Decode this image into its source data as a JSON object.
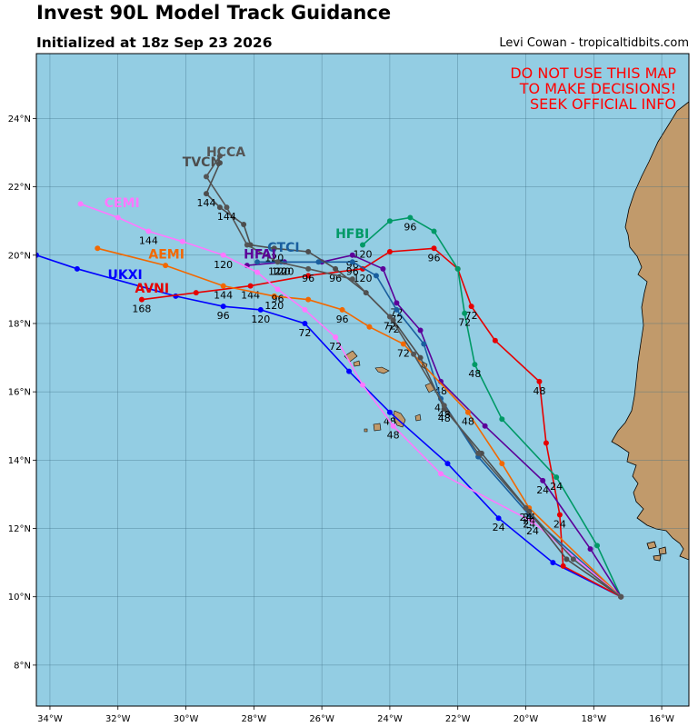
{
  "title": "Invest 90L Model Track Guidance",
  "subtitle": "Initialized at 18z Sep 23 2026",
  "credit": "Levi Cowan - tropicaltidbits.com",
  "warning": [
    "DO NOT USE THIS MAP",
    "TO MAKE DECISIONS!",
    "SEEK OFFICIAL INFO"
  ],
  "colors": {
    "ocean": "#93cde3",
    "land": "#c19a6b",
    "grid": "#3f6f84",
    "warning": "#ff0000"
  },
  "axes": {
    "lon_ticks": [
      "34°W",
      "32°W",
      "30°W",
      "28°W",
      "26°W",
      "24°W",
      "22°W",
      "20°W",
      "18°W",
      "16°W"
    ],
    "lat_ticks": [
      "8°N",
      "10°N",
      "12°N",
      "14°N",
      "16°N",
      "18°N",
      "20°N",
      "22°N",
      "24°N"
    ],
    "lon_range": [
      -34.4,
      -15.2
    ],
    "lat_range": [
      6.8,
      25.9
    ]
  },
  "chart_data": {
    "type": "map-tracks",
    "origin": {
      "lon": -17.2,
      "lat": 10.0
    },
    "series": [
      {
        "name": "UKXI",
        "color": "#0000ff",
        "points": [
          [
            -17.2,
            10.0
          ],
          [
            -19.2,
            11.0
          ],
          [
            -20.8,
            12.3
          ],
          [
            -22.3,
            13.9
          ],
          [
            -24.0,
            15.4
          ],
          [
            -25.2,
            16.6
          ],
          [
            -26.5,
            18.0
          ],
          [
            -27.8,
            18.4
          ],
          [
            -28.9,
            18.5
          ],
          [
            -30.3,
            18.8
          ],
          [
            -33.2,
            19.6
          ],
          [
            -34.4,
            20.0
          ]
        ],
        "labels": [
          [
            -20.8,
            12.3,
            "24"
          ],
          [
            -24.0,
            15.4,
            "48"
          ],
          [
            -26.5,
            18.0,
            "72"
          ],
          [
            -28.9,
            18.5,
            "96"
          ],
          [
            -27.8,
            18.4,
            "120"
          ]
        ]
      },
      {
        "name": "AVNI",
        "color": "#e60000",
        "points": [
          [
            -17.2,
            10.0
          ],
          [
            -18.9,
            10.9
          ],
          [
            -19.0,
            12.4
          ],
          [
            -19.4,
            14.5
          ],
          [
            -19.6,
            16.3
          ],
          [
            -20.9,
            17.5
          ],
          [
            -21.6,
            18.5
          ],
          [
            -22.0,
            19.6
          ],
          [
            -22.7,
            20.2
          ],
          [
            -24.0,
            20.1
          ],
          [
            -24.8,
            19.6
          ],
          [
            -26.4,
            19.4
          ],
          [
            -28.1,
            19.1
          ],
          [
            -29.7,
            18.9
          ],
          [
            -31.3,
            18.7
          ]
        ],
        "labels": [
          [
            -19.0,
            12.4,
            "24"
          ],
          [
            -19.6,
            16.3,
            "48"
          ],
          [
            -21.6,
            18.5,
            "72"
          ],
          [
            -22.7,
            20.2,
            "96"
          ],
          [
            -24.8,
            19.6,
            "120"
          ],
          [
            -28.1,
            19.1,
            "144"
          ],
          [
            -31.3,
            18.7,
            "168"
          ]
        ]
      },
      {
        "name": "HFBI",
        "color": "#009966",
        "points": [
          [
            -17.2,
            10.0
          ],
          [
            -17.9,
            11.5
          ],
          [
            -19.1,
            13.5
          ],
          [
            -20.7,
            15.2
          ],
          [
            -21.5,
            16.8
          ],
          [
            -21.8,
            18.3
          ],
          [
            -22.0,
            19.6
          ],
          [
            -22.7,
            20.7
          ],
          [
            -23.4,
            21.1
          ],
          [
            -24.0,
            21.0
          ],
          [
            -24.8,
            20.3
          ]
        ],
        "labels": [
          [
            -19.1,
            13.5,
            "24"
          ],
          [
            -21.5,
            16.8,
            "48"
          ],
          [
            -21.8,
            18.3,
            "72"
          ],
          [
            -23.4,
            21.1,
            "96"
          ],
          [
            -24.8,
            20.3,
            "120"
          ]
        ]
      },
      {
        "name": "HFAI",
        "color": "#5c0099",
        "points": [
          [
            -17.2,
            10.0
          ],
          [
            -18.1,
            11.4
          ],
          [
            -19.5,
            13.4
          ],
          [
            -21.2,
            15.0
          ],
          [
            -22.5,
            16.3
          ],
          [
            -23.1,
            17.8
          ],
          [
            -23.8,
            18.6
          ],
          [
            -24.2,
            19.6
          ],
          [
            -25.1,
            20.0
          ],
          [
            -26.0,
            19.8
          ],
          [
            -27.1,
            19.8
          ],
          [
            -28.2,
            19.7
          ]
        ],
        "labels": [
          [
            -19.5,
            13.4,
            "24"
          ],
          [
            -22.5,
            16.3,
            "48"
          ],
          [
            -23.8,
            18.6,
            "72"
          ],
          [
            -25.1,
            20.0,
            "96"
          ],
          [
            -27.1,
            19.8,
            "120"
          ]
        ]
      },
      {
        "name": "CTCI",
        "color": "#1a5f9e",
        "points": [
          [
            -17.2,
            10.0
          ],
          [
            -19.9,
            12.4
          ],
          [
            -21.4,
            14.1
          ],
          [
            -22.5,
            15.8
          ],
          [
            -23.0,
            17.4
          ],
          [
            -23.8,
            18.4
          ],
          [
            -24.4,
            19.4
          ],
          [
            -25.1,
            19.8
          ],
          [
            -26.1,
            19.8
          ],
          [
            -27.2,
            19.8
          ],
          [
            -27.9,
            19.8
          ]
        ],
        "labels": [
          [
            -19.9,
            12.4,
            "24"
          ],
          [
            -22.5,
            15.8,
            "48"
          ],
          [
            -23.8,
            18.4,
            "72"
          ],
          [
            -25.1,
            19.8,
            "96"
          ],
          [
            -27.2,
            19.8,
            "120"
          ]
        ]
      },
      {
        "name": "AEMI",
        "color": "#f26800",
        "points": [
          [
            -17.2,
            10.0
          ],
          [
            -19.9,
            12.6
          ],
          [
            -20.7,
            13.9
          ],
          [
            -21.7,
            15.4
          ],
          [
            -23.6,
            17.4
          ],
          [
            -24.6,
            17.9
          ],
          [
            -25.4,
            18.4
          ],
          [
            -26.4,
            18.7
          ],
          [
            -27.4,
            18.8
          ],
          [
            -28.9,
            19.1
          ],
          [
            -30.6,
            19.7
          ],
          [
            -32.6,
            20.2
          ]
        ],
        "labels": [
          [
            -19.9,
            12.6,
            "24"
          ],
          [
            -21.7,
            15.4,
            "48"
          ],
          [
            -23.6,
            17.4,
            "72"
          ],
          [
            -25.4,
            18.4,
            "96"
          ],
          [
            -27.4,
            18.8,
            "120"
          ],
          [
            -28.9,
            19.1,
            "144"
          ]
        ]
      },
      {
        "name": "CEMI",
        "color": "#ff77ff",
        "points": [
          [
            -17.2,
            10.0
          ],
          [
            -19.8,
            12.2
          ],
          [
            -22.5,
            13.6
          ],
          [
            -23.9,
            15.0
          ],
          [
            -24.8,
            16.2
          ],
          [
            -25.6,
            17.6
          ],
          [
            -26.5,
            18.4
          ],
          [
            -27.3,
            19.0
          ],
          [
            -27.9,
            19.5
          ],
          [
            -28.9,
            20.0
          ],
          [
            -30.1,
            20.4
          ],
          [
            -31.1,
            20.7
          ],
          [
            -32.0,
            21.1
          ],
          [
            -33.1,
            21.5
          ]
        ],
        "labels": [
          [
            -19.8,
            12.2,
            "24"
          ],
          [
            -23.9,
            15.0,
            "48"
          ],
          [
            -25.6,
            17.6,
            "72"
          ],
          [
            -27.3,
            19.0,
            "96"
          ],
          [
            -28.9,
            20.0,
            "120"
          ],
          [
            -31.1,
            20.7,
            "144"
          ]
        ]
      },
      {
        "name": "TVCN",
        "color": "#4d4d4d",
        "points": [
          [
            -17.2,
            10.0
          ],
          [
            -18.8,
            11.1
          ],
          [
            -19.9,
            12.5
          ],
          [
            -21.3,
            14.2
          ],
          [
            -22.4,
            15.5
          ],
          [
            -23.1,
            17.0
          ],
          [
            -23.9,
            18.1
          ],
          [
            -24.7,
            18.9
          ],
          [
            -25.6,
            19.6
          ],
          [
            -26.4,
            20.1
          ],
          [
            -27.4,
            20.2
          ],
          [
            -28.1,
            20.3
          ],
          [
            -28.3,
            20.9
          ],
          [
            -29.0,
            21.4
          ],
          [
            -29.4,
            21.8
          ],
          [
            -29.0,
            22.7
          ]
        ],
        "labels": [
          [
            -19.9,
            12.5,
            "24"
          ],
          [
            -22.4,
            15.5,
            "48"
          ],
          [
            -23.9,
            18.1,
            "72"
          ],
          [
            -25.6,
            19.6,
            "96"
          ],
          [
            -27.4,
            20.2,
            "120"
          ],
          [
            -29.4,
            21.8,
            "144"
          ]
        ]
      },
      {
        "name": "HCCA",
        "color": "#555555",
        "points": [
          [
            -17.2,
            10.0
          ],
          [
            -18.6,
            11.1
          ],
          [
            -20.0,
            12.6
          ],
          [
            -21.4,
            14.2
          ],
          [
            -22.4,
            15.6
          ],
          [
            -23.3,
            17.1
          ],
          [
            -24.0,
            18.2
          ],
          [
            -25.1,
            19.3
          ],
          [
            -26.4,
            19.6
          ],
          [
            -27.3,
            19.8
          ],
          [
            -28.2,
            20.3
          ],
          [
            -28.8,
            21.4
          ],
          [
            -29.4,
            22.3
          ],
          [
            -29.0,
            22.9
          ]
        ],
        "labels": [
          [
            -20.0,
            12.6,
            "24"
          ],
          [
            -22.4,
            15.6,
            "48"
          ],
          [
            -24.0,
            18.2,
            "72"
          ],
          [
            -26.4,
            19.6,
            "96"
          ],
          [
            -27.3,
            19.8,
            "120"
          ],
          [
            -28.8,
            21.4,
            "144"
          ]
        ]
      }
    ],
    "name_labels": [
      {
        "name": "HCCA",
        "lon": -29.4,
        "lat": 22.9
      },
      {
        "name": "TVCN",
        "lon": -30.1,
        "lat": 22.6
      },
      {
        "name": "CEMI",
        "lon": -32.4,
        "lat": 21.4
      },
      {
        "name": "HFBI",
        "lon": -25.6,
        "lat": 20.5
      },
      {
        "name": "CTCI",
        "lon": -27.6,
        "lat": 20.1
      },
      {
        "name": "HFAI",
        "lon": -28.3,
        "lat": 19.9
      },
      {
        "name": "AEMI",
        "lon": -31.1,
        "lat": 19.9
      },
      {
        "name": "UKXI",
        "lon": -32.3,
        "lat": 19.3
      },
      {
        "name": "AVNI",
        "lon": -31.5,
        "lat": 18.9
      }
    ]
  }
}
